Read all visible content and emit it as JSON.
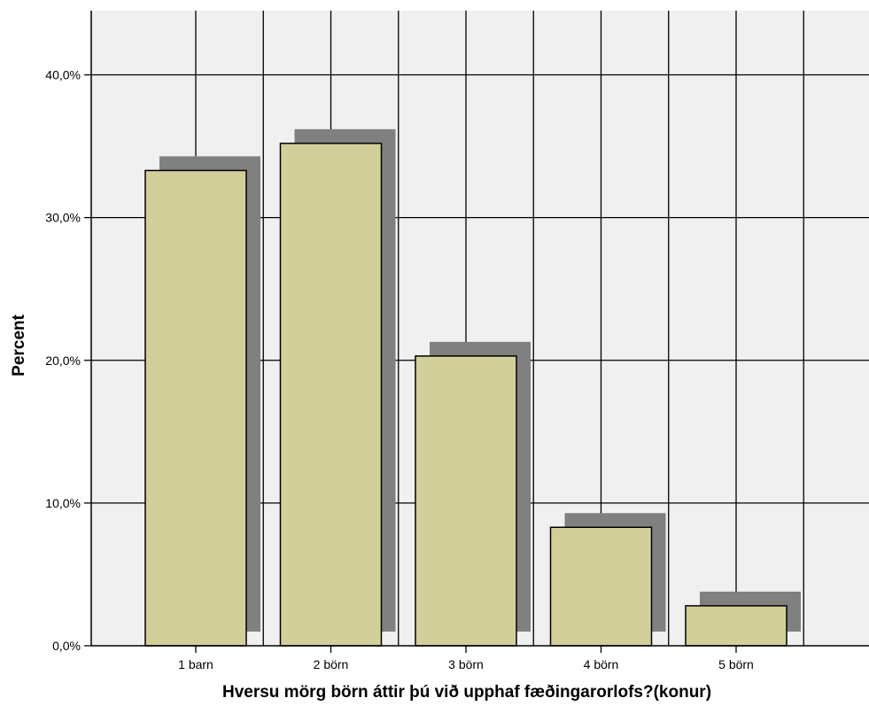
{
  "chart_data": {
    "type": "bar",
    "title": "",
    "xlabel": "Hversu mörg börn áttir þú við upphaf fæðingarorlofs?(konur)",
    "ylabel": "Percent",
    "categories": [
      "1 barn",
      "2 börn",
      "3 börn",
      "4 börn",
      "5 börn"
    ],
    "values": [
      33.3,
      35.2,
      20.3,
      8.3,
      2.8
    ],
    "ylim": [
      0,
      44.5
    ],
    "yticks": [
      0,
      10,
      20,
      30,
      40
    ],
    "ytick_labels": [
      "0,0%",
      "10,0%",
      "20,0%",
      "30,0%",
      "40,0%"
    ],
    "grid": true,
    "legend": "none",
    "colors": {
      "bar_fill": "#d3cf9a",
      "bar_shadow": "#808080",
      "plot_background": "#f0f0f0",
      "gridline": "#000000"
    }
  }
}
